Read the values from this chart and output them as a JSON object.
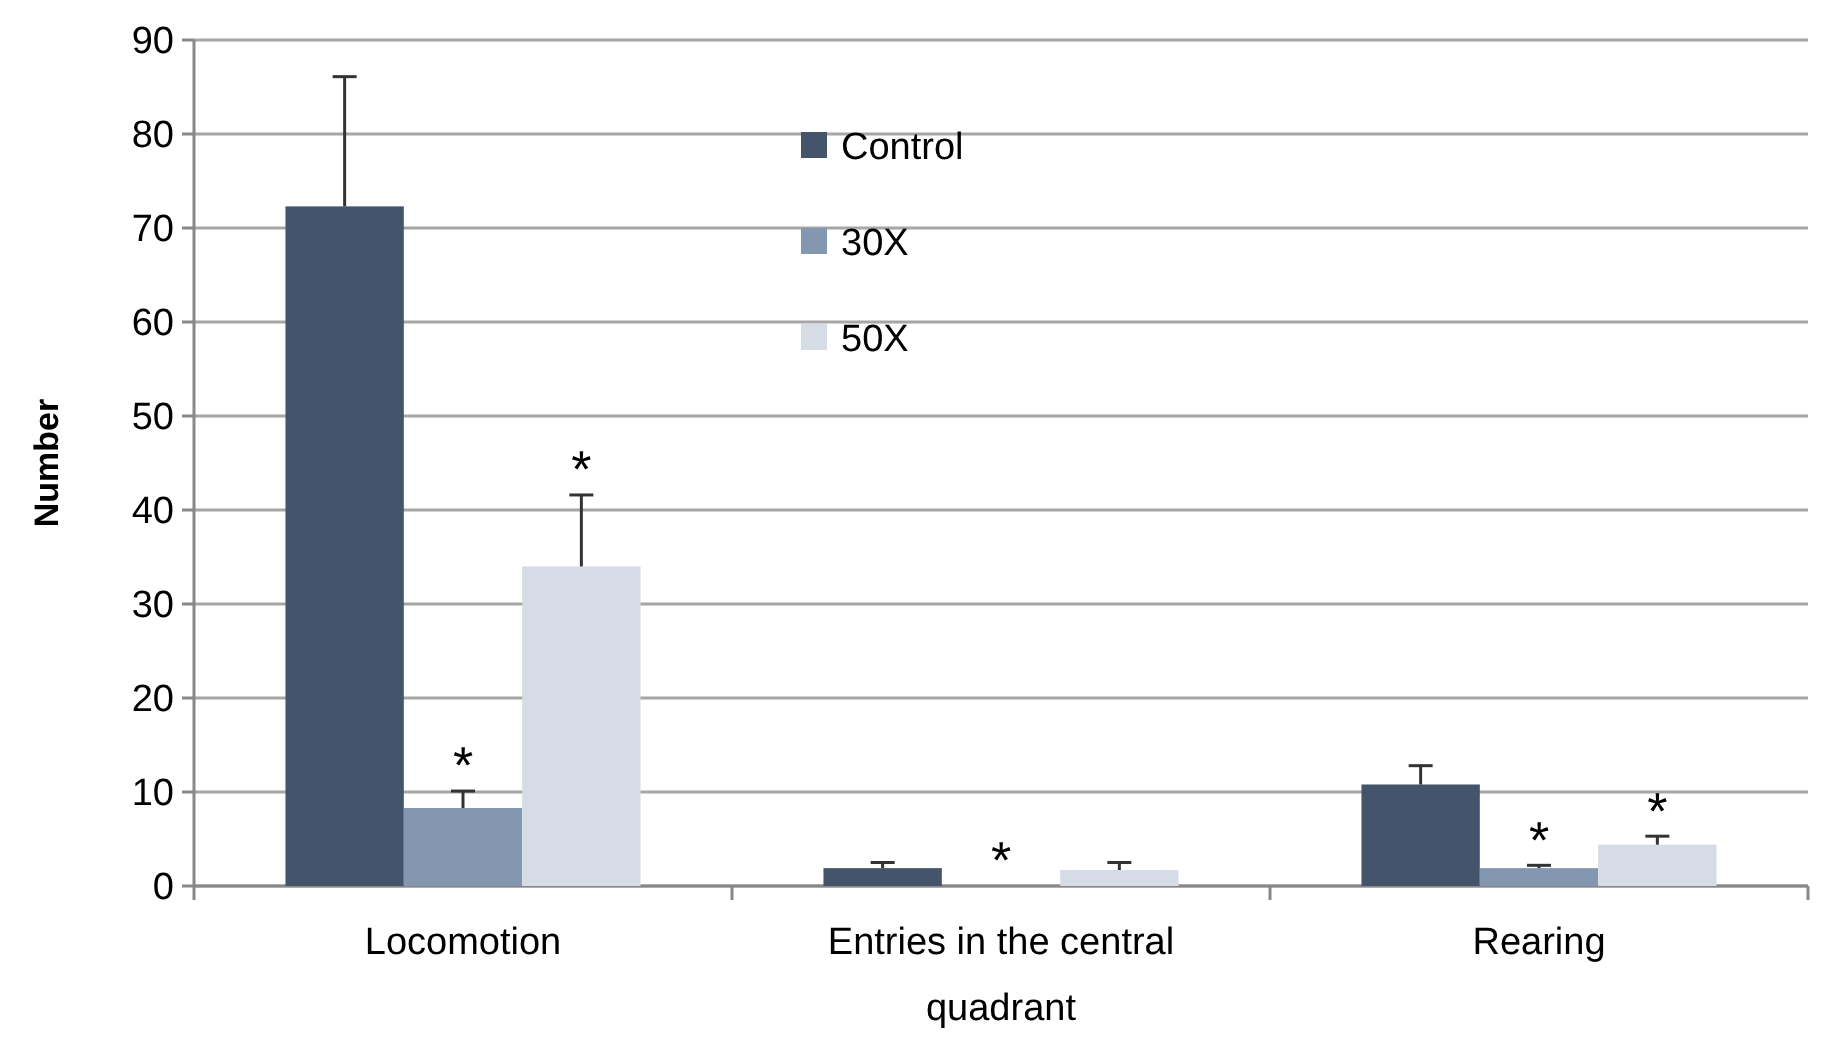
{
  "chart_data": {
    "type": "bar",
    "ylabel": "Number",
    "categories": [
      "Locomotion",
      "Entries in the central quadrant",
      "Rearing"
    ],
    "series": [
      {
        "name": "Control",
        "color": "#44546a",
        "values": [
          72.3,
          1.9,
          10.8
        ],
        "errors": [
          13.8,
          0.6,
          2
        ]
      },
      {
        "name": "30X",
        "color": "#8497b0",
        "values": [
          8.3,
          0,
          1.9
        ],
        "errors": [
          1.8,
          null,
          0.3
        ],
        "value_labels": [
          "*",
          "*",
          "*"
        ]
      },
      {
        "name": "50X",
        "color": "#d6dce5",
        "values": [
          34,
          1.7,
          4.4
        ],
        "errors": [
          7.6,
          0.8,
          0.9
        ],
        "value_labels": [
          "*",
          null,
          "*"
        ]
      }
    ],
    "ylim": [
      0,
      90
    ],
    "yticks": [
      0,
      10,
      20,
      30,
      40,
      50,
      60,
      70,
      80,
      90
    ],
    "grid": "y",
    "legend": "top"
  }
}
